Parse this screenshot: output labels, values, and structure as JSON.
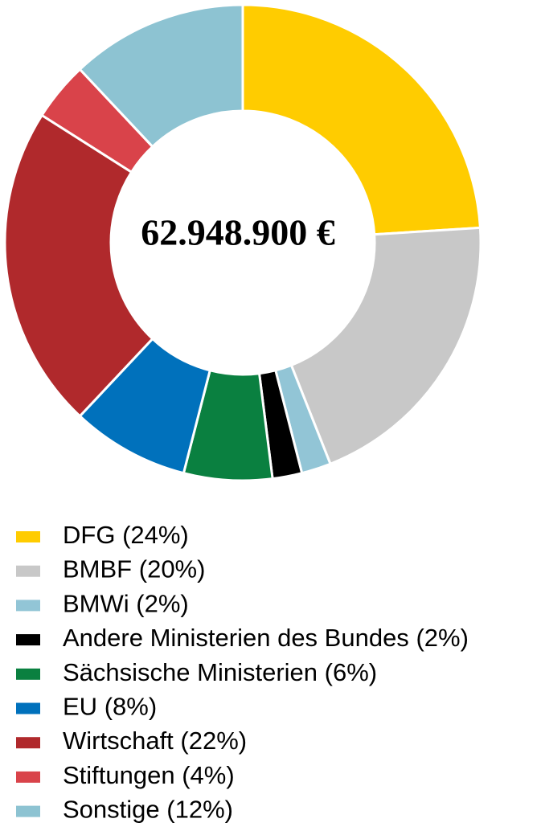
{
  "chart_data": {
    "type": "donut",
    "center_label": "62.948.900 €",
    "categories": [
      "DFG",
      "BMBF",
      "BMWi",
      "Andere Ministerien des Bundes",
      "Sächsische Ministerien",
      "EU",
      "Wirtschaft",
      "Stiftungen",
      "Sonstige"
    ],
    "values": [
      24,
      20,
      2,
      2,
      6,
      8,
      22,
      4,
      12
    ],
    "value_labels": [
      "(24%)",
      "(20%)",
      "(2%)",
      "(2%)",
      "(6%)",
      "(8%)",
      "(22%)",
      "(4%)",
      "(12%)"
    ],
    "colors": [
      "#FFCC00",
      "#C8C8C8",
      "#92C5D6",
      "#000000",
      "#0A8040",
      "#0071BC",
      "#B0292C",
      "#D9434A",
      "#8DC3D2"
    ],
    "legend": "bottom"
  }
}
